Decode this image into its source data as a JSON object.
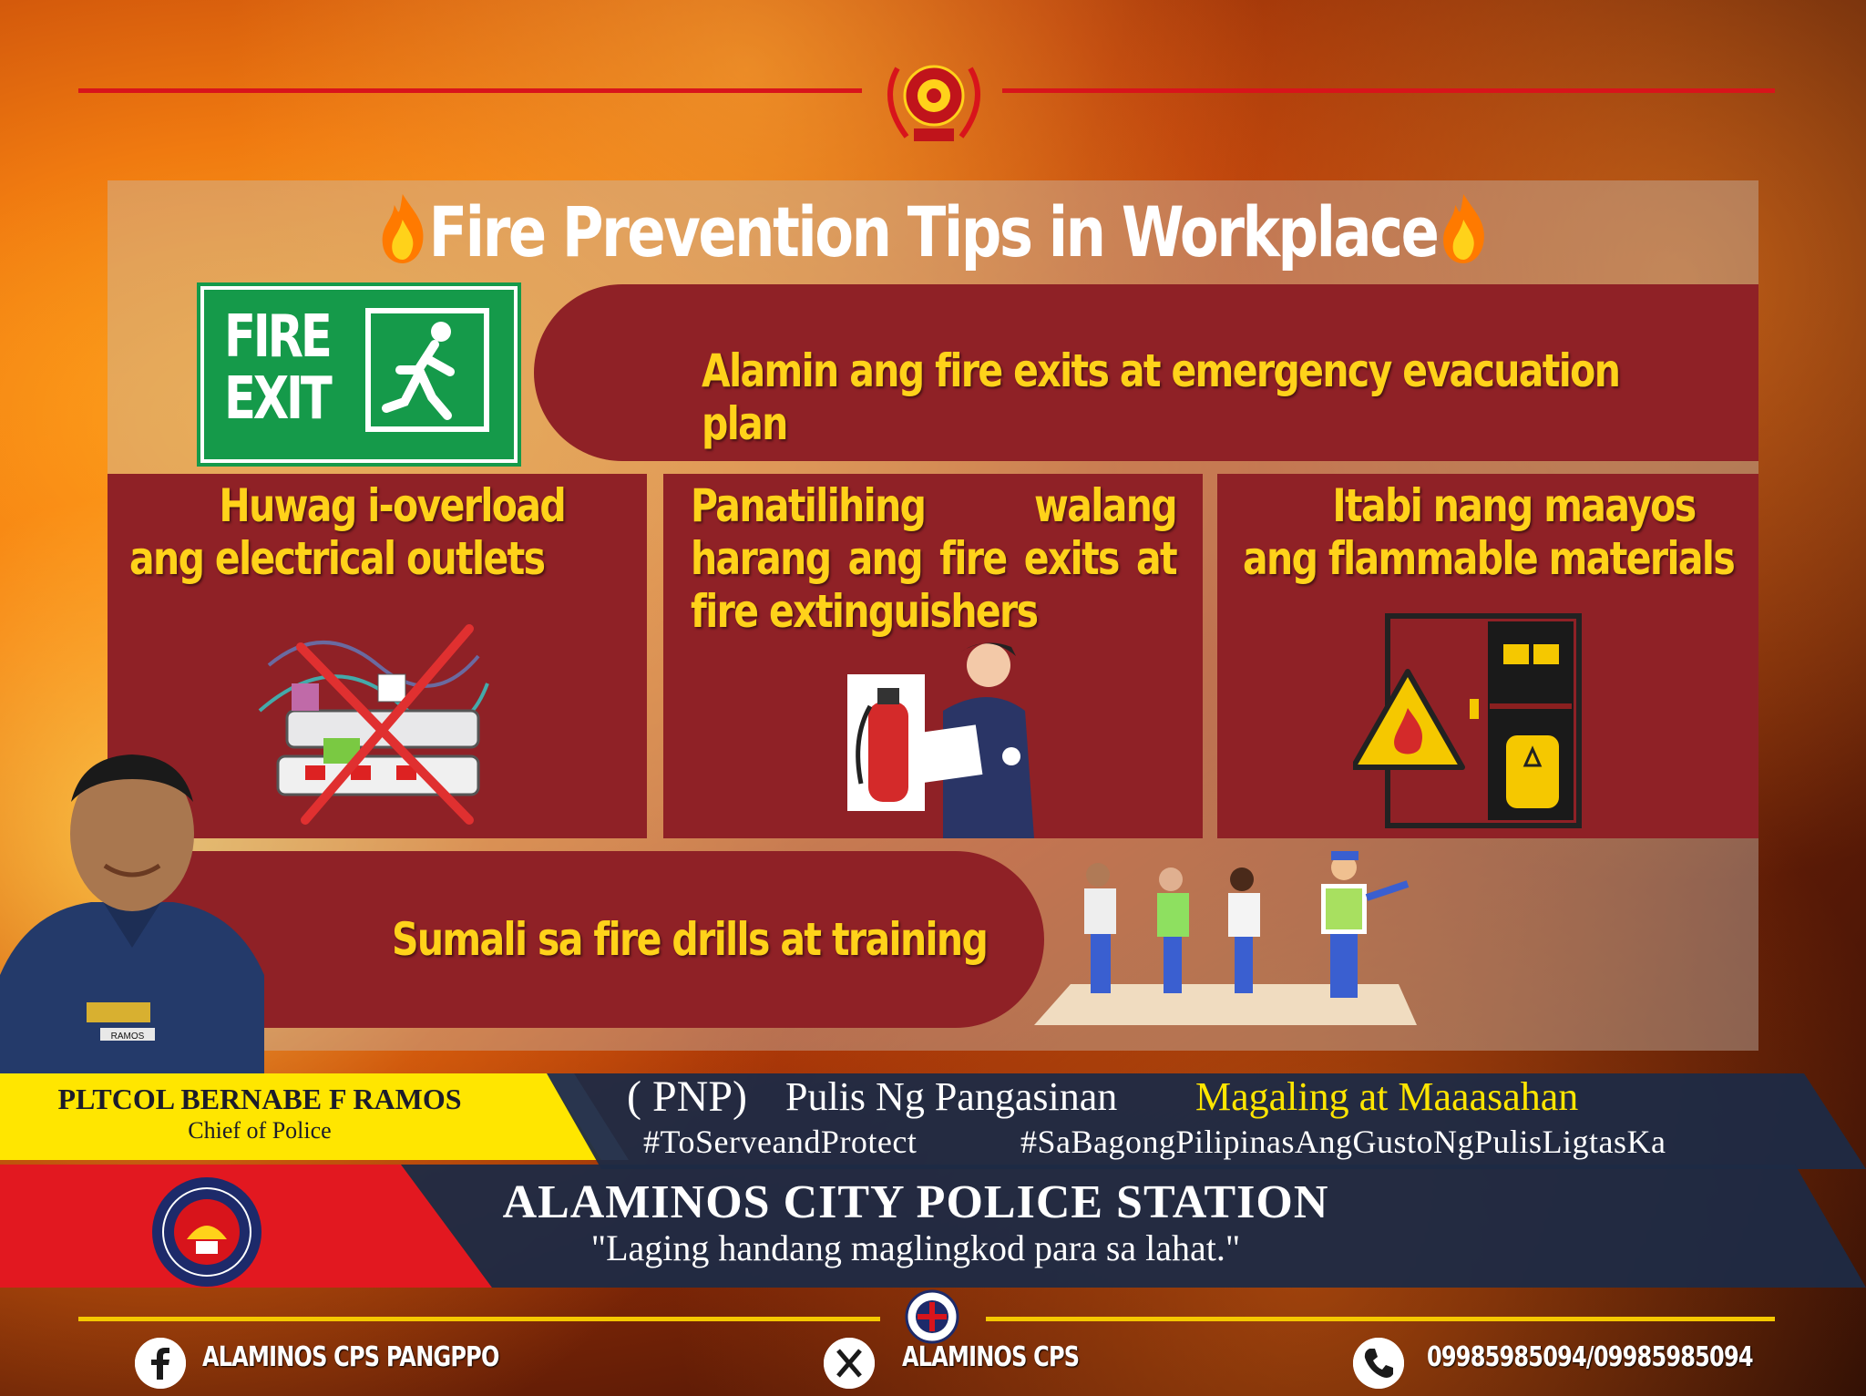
{
  "title": "Fire Prevention Tips in Workplace",
  "exit_sign": {
    "line1": "FIRE",
    "line2": "EXIT"
  },
  "tips": {
    "exits": "Alamin ang fire exits at emergency evacuation plan",
    "outlets": "Huwag i-overload ang electrical outlets",
    "clear_exits": "Panatilihing walang harang ang fire exits at fire extinguishers",
    "flammables": "Itabi nang maayos ang flammable materials",
    "drills": "Sumali sa fire drills at training"
  },
  "chief": {
    "name": "PLTCOL BERNABE F RAMOS",
    "title": "Chief of Police",
    "name_tag": "RAMOS"
  },
  "pnp": {
    "abbr": "( PNP)",
    "org": "Pulis Ng Pangasinan",
    "slogan": "Magaling at Maaasahan",
    "hashtag1": "#ToServeandProtect",
    "hashtag2": "#SaBagongPilipinasAngGustoNgPulisLigtasKa"
  },
  "station": {
    "name": "ALAMINOS CITY POLICE STATION",
    "motto": "\"Laging handang maglingkod para sa lahat.\""
  },
  "footer": {
    "facebook": "ALAMINOS CPS PANGPPO",
    "x": "ALAMINOS CPS",
    "phone": "09985985094/09985985094"
  },
  "colors": {
    "box": "#8f2126",
    "tip_text": "#ffd21a",
    "accent_red": "#d8141b",
    "band_dark": "#1d2a44",
    "band_yellow": "#ffe600"
  },
  "icons": [
    "fire-emoji-icon",
    "running-man-icon",
    "facebook-icon",
    "x-icon",
    "phone-icon",
    "warning-flame-icon"
  ]
}
